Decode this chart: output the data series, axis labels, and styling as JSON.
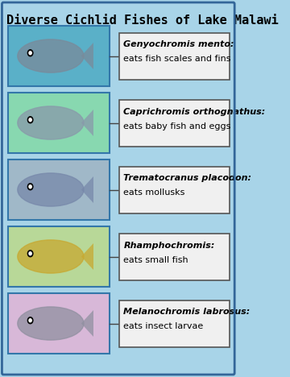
{
  "title": "Diverse Cichlid Fishes of Lake Malawi",
  "title_fontsize": 11,
  "background_color": "#a8d4e8",
  "fish_entries": [
    {
      "name": "Genyochromis mento",
      "diet": "eats fish scales and fins",
      "box_bg": "#5ab0c8",
      "fish_color": "#7a8a9a",
      "border_color": "#3377aa"
    },
    {
      "name": "Caprichromis orthognathus",
      "diet": "eats baby fish and eggs",
      "box_bg": "#88d8b0",
      "fish_color": "#8899aa",
      "border_color": "#3377aa"
    },
    {
      "name": "Trematocranus placodon",
      "diet": "eats mollusks",
      "box_bg": "#a0b8c8",
      "fish_color": "#7788aa",
      "border_color": "#3377aa"
    },
    {
      "name": "Rhamphochromis",
      "diet": "eats small fish",
      "box_bg": "#b8d898",
      "fish_color": "#c8a830",
      "border_color": "#3377aa"
    },
    {
      "name": "Melanochromis labrosus",
      "diet": "eats insect larvae",
      "box_bg": "#d8b8d8",
      "fish_color": "#9090a0",
      "border_color": "#3377aa"
    }
  ],
  "outer_border_color": "#336699",
  "label_box_bg": "#f0f0f0",
  "label_box_edge": "#555555",
  "label_name_fontsize": 8,
  "label_diet_fontsize": 8
}
